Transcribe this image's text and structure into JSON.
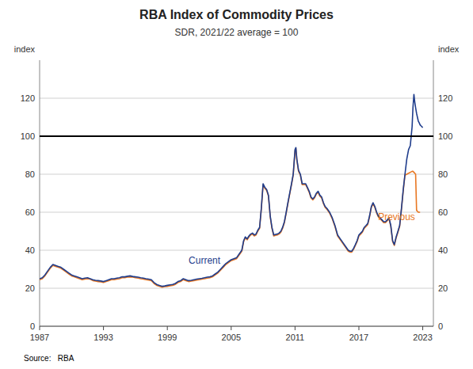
{
  "chart_data": {
    "type": "line",
    "title": "RBA Index of Commodity Prices",
    "subtitle": "SDR, 2021/22 average = 100",
    "ylabel": "index",
    "y2label": "index",
    "source": "Source:   RBA",
    "xlim": [
      1987,
      2024
    ],
    "xticks": [
      1987,
      1993,
      1999,
      2005,
      2011,
      2017,
      2023
    ],
    "ylim": [
      0,
      140
    ],
    "yticks": [
      0,
      20,
      40,
      60,
      80,
      100,
      120
    ],
    "y2lim": [
      0,
      140
    ],
    "y2ticks": [
      0,
      20,
      40,
      60,
      80,
      100,
      120
    ],
    "grid": true,
    "hline": 100,
    "series": [
      {
        "name": "Current",
        "color": "#1f3d8c",
        "label_x": 2001.0,
        "label_y": 33,
        "x": [
          1987.0,
          1987.25,
          1987.5,
          1987.75,
          1988.0,
          1988.25,
          1988.5,
          1988.75,
          1989.0,
          1989.25,
          1989.5,
          1989.75,
          1990.0,
          1990.25,
          1990.5,
          1990.75,
          1991.0,
          1991.25,
          1991.5,
          1991.75,
          1992.0,
          1992.25,
          1992.5,
          1992.75,
          1993.0,
          1993.25,
          1993.5,
          1993.75,
          1994.0,
          1994.25,
          1994.5,
          1994.75,
          1995.0,
          1995.25,
          1995.5,
          1995.75,
          1996.0,
          1996.25,
          1996.5,
          1996.75,
          1997.0,
          1997.25,
          1997.5,
          1997.75,
          1998.0,
          1998.25,
          1998.5,
          1998.75,
          1999.0,
          1999.25,
          1999.5,
          1999.75,
          2000.0,
          2000.25,
          2000.5,
          2000.75,
          2001.0,
          2001.25,
          2001.5,
          2001.75,
          2002.0,
          2002.25,
          2002.5,
          2002.75,
          2003.0,
          2003.25,
          2003.5,
          2003.75,
          2004.0,
          2004.25,
          2004.5,
          2004.75,
          2005.0,
          2005.25,
          2005.5,
          2005.75,
          2006.0,
          2006.17,
          2006.33,
          2006.5,
          2006.67,
          2006.83,
          2007.0,
          2007.17,
          2007.33,
          2007.5,
          2007.67,
          2007.83,
          2008.0,
          2008.17,
          2008.33,
          2008.5,
          2008.67,
          2008.83,
          2009.0,
          2009.17,
          2009.33,
          2009.5,
          2009.67,
          2009.83,
          2010.0,
          2010.17,
          2010.33,
          2010.5,
          2010.67,
          2010.83,
          2011.0,
          2011.08,
          2011.17,
          2011.33,
          2011.5,
          2011.67,
          2011.83,
          2012.0,
          2012.17,
          2012.33,
          2012.5,
          2012.67,
          2012.83,
          2013.0,
          2013.17,
          2013.33,
          2013.5,
          2013.67,
          2013.83,
          2014.0,
          2014.25,
          2014.5,
          2014.75,
          2015.0,
          2015.25,
          2015.5,
          2015.75,
          2016.0,
          2016.17,
          2016.33,
          2016.5,
          2016.67,
          2016.83,
          2017.0,
          2017.17,
          2017.33,
          2017.5,
          2017.67,
          2017.83,
          2018.0,
          2018.17,
          2018.33,
          2018.5,
          2018.67,
          2018.83,
          2019.0,
          2019.17,
          2019.33,
          2019.5,
          2019.67,
          2019.83,
          2020.0,
          2020.17,
          2020.33,
          2020.5,
          2020.67,
          2020.83,
          2021.0,
          2021.17,
          2021.33,
          2021.5,
          2021.67,
          2021.83,
          2022.0,
          2022.08,
          2022.17,
          2022.25,
          2022.33,
          2022.42,
          2022.5,
          2022.58,
          2022.67,
          2022.75,
          2022.83,
          2022.92,
          2023.0
        ],
        "values": [
          25.0,
          25.5,
          27.0,
          29.0,
          31.0,
          32.5,
          32.0,
          31.5,
          31.0,
          30.0,
          29.0,
          28.0,
          27.0,
          26.5,
          26.0,
          25.5,
          25.0,
          25.3,
          25.5,
          25.0,
          24.5,
          24.2,
          24.0,
          23.8,
          23.5,
          24.0,
          24.5,
          25.0,
          25.0,
          25.3,
          25.5,
          26.0,
          26.0,
          26.3,
          26.5,
          26.2,
          26.0,
          25.8,
          25.5,
          25.3,
          25.0,
          24.8,
          24.5,
          23.0,
          22.0,
          21.5,
          21.0,
          21.2,
          21.5,
          21.8,
          22.0,
          22.5,
          23.5,
          24.0,
          25.0,
          24.5,
          24.0,
          24.2,
          24.5,
          24.8,
          25.0,
          25.2,
          25.5,
          25.8,
          26.0,
          26.5,
          27.5,
          28.5,
          30.0,
          31.5,
          33.0,
          34.0,
          35.0,
          35.5,
          36.0,
          38.0,
          40.0,
          45.0,
          47.0,
          46.0,
          47.5,
          48.5,
          49.0,
          48.0,
          48.5,
          50.5,
          52.0,
          62.0,
          75.0,
          73.0,
          72.0,
          69.0,
          58.0,
          52.0,
          48.0,
          48.3,
          48.5,
          49.0,
          50.0,
          52.0,
          55.0,
          60.0,
          65.0,
          70.0,
          75.0,
          80.0,
          93.0,
          94.0,
          88.0,
          82.0,
          80.0,
          75.0,
          75.0,
          75.0,
          73.0,
          71.0,
          68.0,
          67.0,
          68.0,
          70.0,
          71.0,
          69.0,
          68.0,
          65.0,
          63.0,
          62.0,
          60.0,
          57.0,
          53.0,
          48.0,
          46.0,
          44.0,
          42.0,
          40.0,
          39.5,
          39.5,
          41.0,
          43.0,
          45.0,
          48.0,
          49.0,
          50.0,
          52.0,
          53.0,
          54.0,
          58.0,
          63.0,
          65.0,
          63.0,
          60.0,
          58.0,
          57.0,
          56.0,
          55.0,
          55.0,
          56.0,
          57.0,
          53.0,
          45.0,
          43.0,
          47.0,
          50.0,
          53.0,
          62.0,
          72.0,
          80.0,
          88.0,
          93.0,
          95.0,
          105.0,
          115.0,
          122.0,
          118.0,
          115.0,
          112.0,
          110.0,
          108.0,
          107.0,
          106.0,
          105.5,
          105.0,
          104.5
        ]
      },
      {
        "name": "Previous",
        "color": "#e87722",
        "label_x": 2018.8,
        "label_y": 56,
        "x": [
          1987.0,
          1987.25,
          1987.5,
          1987.75,
          1988.0,
          1988.25,
          1988.5,
          1988.75,
          1989.0,
          1989.25,
          1989.5,
          1989.75,
          1990.0,
          1990.25,
          1990.5,
          1990.75,
          1991.0,
          1991.25,
          1991.5,
          1991.75,
          1992.0,
          1992.25,
          1992.5,
          1992.75,
          1993.0,
          1993.25,
          1993.5,
          1993.75,
          1994.0,
          1994.25,
          1994.5,
          1994.75,
          1995.0,
          1995.25,
          1995.5,
          1995.75,
          1996.0,
          1996.25,
          1996.5,
          1996.75,
          1997.0,
          1997.25,
          1997.5,
          1997.75,
          1998.0,
          1998.25,
          1998.5,
          1998.75,
          1999.0,
          1999.25,
          1999.5,
          1999.75,
          2000.0,
          2000.25,
          2000.5,
          2000.75,
          2001.0,
          2001.25,
          2001.5,
          2001.75,
          2002.0,
          2002.25,
          2002.5,
          2002.75,
          2003.0,
          2003.25,
          2003.5,
          2003.75,
          2004.0,
          2004.25,
          2004.5,
          2004.75,
          2005.0,
          2005.25,
          2005.5,
          2005.75,
          2006.0,
          2006.17,
          2006.33,
          2006.5,
          2006.67,
          2006.83,
          2007.0,
          2007.17,
          2007.33,
          2007.5,
          2007.67,
          2007.83,
          2008.0,
          2008.17,
          2008.33,
          2008.5,
          2008.67,
          2008.83,
          2009.0,
          2009.17,
          2009.33,
          2009.5,
          2009.67,
          2009.83,
          2010.0,
          2010.17,
          2010.33,
          2010.5,
          2010.67,
          2010.83,
          2011.0,
          2011.08,
          2011.17,
          2011.33,
          2011.5,
          2011.67,
          2011.83,
          2012.0,
          2012.17,
          2012.33,
          2012.5,
          2012.67,
          2012.83,
          2013.0,
          2013.17,
          2013.33,
          2013.5,
          2013.67,
          2013.83,
          2014.0,
          2014.25,
          2014.5,
          2014.75,
          2015.0,
          2015.25,
          2015.5,
          2015.75,
          2016.0,
          2016.17,
          2016.33,
          2016.5,
          2016.67,
          2016.83,
          2017.0,
          2017.17,
          2017.33,
          2017.5,
          2017.67,
          2017.83,
          2018.0,
          2018.17,
          2018.33,
          2018.5,
          2018.67,
          2018.83,
          2019.0,
          2019.17,
          2019.33,
          2019.5,
          2019.67,
          2019.83,
          2020.0,
          2020.17,
          2020.33,
          2020.5,
          2020.67,
          2020.83,
          2021.0,
          2021.17,
          2021.33,
          2021.5,
          2021.67,
          2021.83,
          2022.0,
          2022.08,
          2022.17,
          2022.25,
          2022.33,
          2022.42,
          2022.5,
          2022.58,
          2022.67,
          2022.75
        ],
        "values": [
          24.5,
          25.0,
          26.5,
          28.5,
          30.5,
          32.0,
          31.5,
          31.0,
          30.5,
          29.5,
          28.5,
          27.5,
          26.5,
          26.0,
          25.5,
          25.0,
          24.5,
          24.8,
          25.0,
          24.8,
          24.0,
          23.8,
          23.5,
          23.3,
          23.0,
          23.5,
          24.0,
          24.5,
          24.5,
          24.8,
          25.0,
          25.5,
          25.5,
          25.8,
          26.0,
          25.8,
          25.5,
          25.3,
          25.0,
          24.8,
          24.5,
          24.3,
          24.0,
          22.5,
          21.5,
          21.0,
          20.5,
          20.8,
          21.0,
          21.3,
          21.5,
          22.0,
          23.0,
          23.5,
          24.5,
          24.0,
          23.5,
          23.8,
          24.0,
          24.3,
          24.5,
          24.8,
          25.0,
          25.3,
          25.5,
          26.0,
          27.0,
          28.0,
          29.5,
          31.0,
          32.5,
          33.5,
          34.5,
          35.0,
          35.5,
          37.5,
          39.5,
          44.5,
          46.5,
          45.5,
          47.0,
          48.0,
          48.5,
          47.5,
          48.0,
          50.0,
          51.5,
          61.5,
          74.5,
          72.5,
          71.5,
          68.5,
          57.5,
          51.5,
          47.5,
          47.8,
          48.0,
          48.5,
          49.5,
          51.5,
          54.5,
          59.5,
          64.5,
          69.5,
          74.5,
          79.5,
          92.5,
          93.5,
          87.5,
          81.5,
          79.5,
          74.5,
          74.5,
          74.5,
          72.5,
          70.5,
          67.5,
          66.5,
          67.5,
          69.5,
          70.5,
          68.5,
          67.5,
          64.5,
          62.5,
          61.5,
          59.5,
          56.5,
          52.5,
          47.5,
          45.5,
          43.5,
          41.5,
          39.5,
          39.0,
          39.0,
          40.5,
          42.5,
          44.5,
          47.5,
          48.5,
          49.5,
          51.5,
          52.5,
          53.5,
          57.5,
          62.5,
          64.5,
          62.5,
          59.5,
          57.5,
          56.5,
          55.5,
          54.5,
          54.5,
          55.5,
          56.5,
          52.5,
          44.5,
          42.5,
          46.5,
          49.5,
          52.5,
          61.5,
          71.5,
          79.5,
          80.0,
          80.5,
          81.0,
          81.5,
          81.5,
          81.0,
          80.5,
          80.0,
          61.0,
          60.5,
          60.0,
          60.0,
          60.0
        ]
      }
    ]
  }
}
